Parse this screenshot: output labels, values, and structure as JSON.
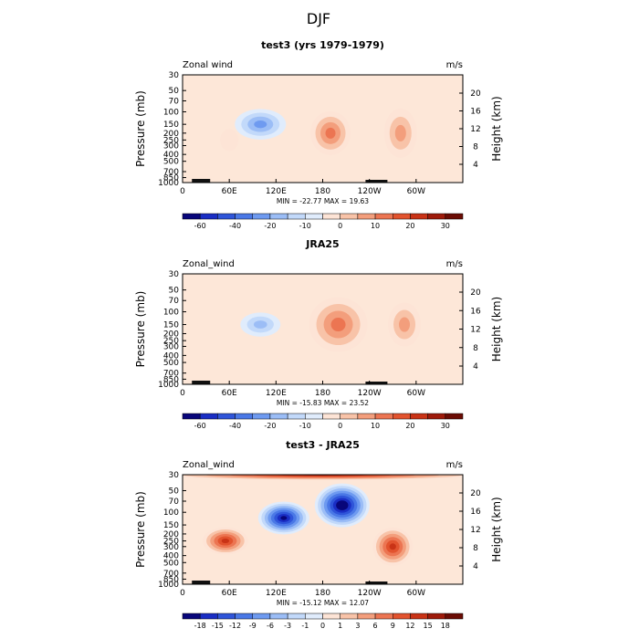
{
  "figure_title": "DJF",
  "chart_data": [
    {
      "type": "heatmap",
      "title": "test3 (yrs 1979-1979)",
      "variable_label": "Zonal wind",
      "units": "m/s",
      "ylabel_left": "Pressure (mb)",
      "ylabel_right": "Height (km)",
      "x_ticks": [
        "0",
        "60E",
        "120E",
        "180",
        "120W",
        "60W"
      ],
      "y_ticks": [
        "30",
        "50",
        "70",
        "100",
        "150",
        "200",
        "250",
        "300",
        "400",
        "500",
        "700",
        "850",
        "1000"
      ],
      "y2_ticks": [
        "20",
        "16",
        "12",
        "8",
        "4"
      ],
      "stats": "MIN = -22.77   MAX =  19.63",
      "colorbar_labels": [
        "-60",
        "-40",
        "-20",
        "-10",
        "0",
        "10",
        "20",
        "30"
      ],
      "colorbar_colors": [
        "#08067a",
        "#1a2ec4",
        "#2f55d9",
        "#4a78e6",
        "#6e9af0",
        "#9bbdf6",
        "#c2d9fa",
        "#e0ecfc",
        "#fde4d6",
        "#f8c3a8",
        "#f39e7c",
        "#ec7552",
        "#e2532e",
        "#c93316",
        "#9e1a0a",
        "#6b0c04"
      ],
      "features": [
        {
          "lon": 100,
          "p": 150,
          "value": -22,
          "rx": 28,
          "ry": 28
        },
        {
          "lon": 190,
          "p": 200,
          "value": 19,
          "rx": 22,
          "ry": 40
        },
        {
          "lon": 280,
          "p": 200,
          "value": 18,
          "rx": 18,
          "ry": 45
        },
        {
          "lon": 60,
          "p": 250,
          "value": 4,
          "rx": 10,
          "ry": 20
        }
      ]
    },
    {
      "type": "heatmap",
      "title": "JRA25",
      "variable_label": "Zonal_wind",
      "units": "m/s",
      "ylabel_left": "Pressure (mb)",
      "ylabel_right": "Height (km)",
      "x_ticks": [
        "0",
        "60E",
        "120E",
        "180",
        "120W",
        "60W"
      ],
      "y_ticks": [
        "30",
        "50",
        "70",
        "100",
        "150",
        "200",
        "250",
        "300",
        "400",
        "500",
        "700",
        "850",
        "1000"
      ],
      "y2_ticks": [
        "20",
        "16",
        "12",
        "8",
        "4"
      ],
      "stats": "MIN = -15.83   MAX =  23.52",
      "colorbar_labels": [
        "-60",
        "-40",
        "-20",
        "-10",
        "0",
        "10",
        "20",
        "30"
      ],
      "colorbar_colors": [
        "#08067a",
        "#1a2ec4",
        "#2f55d9",
        "#4a78e6",
        "#6e9af0",
        "#9bbdf6",
        "#c2d9fa",
        "#e0ecfc",
        "#fde4d6",
        "#f8c3a8",
        "#f39e7c",
        "#ec7552",
        "#e2532e",
        "#c93316",
        "#9e1a0a",
        "#6b0c04"
      ],
      "features": [
        {
          "lon": 100,
          "p": 150,
          "value": -15,
          "rx": 22,
          "ry": 22
        },
        {
          "lon": 200,
          "p": 150,
          "value": 23,
          "rx": 32,
          "ry": 50
        },
        {
          "lon": 285,
          "p": 150,
          "value": 18,
          "rx": 18,
          "ry": 40
        }
      ]
    },
    {
      "type": "heatmap",
      "title": "test3 - JRA25",
      "variable_label": "Zonal_wind",
      "units": "m/s",
      "ylabel_left": "Pressure (mb)",
      "ylabel_right": "Height (km)",
      "x_ticks": [
        "0",
        "60E",
        "120E",
        "180",
        "120W",
        "60W"
      ],
      "y_ticks": [
        "30",
        "50",
        "70",
        "100",
        "150",
        "200",
        "250",
        "300",
        "400",
        "500",
        "700",
        "850",
        "1000"
      ],
      "y2_ticks": [
        "20",
        "16",
        "12",
        "8",
        "4"
      ],
      "stats": "MIN = -15.12   MAX =  12.07",
      "colorbar_labels": [
        "-18",
        "-15",
        "-12",
        "-9",
        "-6",
        "-3",
        "-1",
        "0",
        "1",
        "3",
        "6",
        "9",
        "12",
        "15",
        "18"
      ],
      "colorbar_colors": [
        "#08067a",
        "#1a2ec4",
        "#2f55d9",
        "#4a78e6",
        "#6e9af0",
        "#9bbdf6",
        "#c2d9fa",
        "#e0ecfc",
        "#fde4d6",
        "#f8c3a8",
        "#f39e7c",
        "#ec7552",
        "#e2532e",
        "#c93316",
        "#9e1a0a",
        "#6b0c04"
      ],
      "features": [
        {
          "lon": 130,
          "p": 120,
          "value": -13,
          "rx": 28,
          "ry": 30
        },
        {
          "lon": 205,
          "p": 80,
          "value": -15,
          "rx": 30,
          "ry": 40
        },
        {
          "lon": 55,
          "p": 250,
          "value": 9,
          "rx": 25,
          "ry": 25
        },
        {
          "lon": 270,
          "p": 300,
          "value": 9,
          "rx": 22,
          "ry": 35
        },
        {
          "lon": 180,
          "p": 30,
          "value": 12,
          "rx": 180,
          "ry": 10
        }
      ]
    }
  ]
}
